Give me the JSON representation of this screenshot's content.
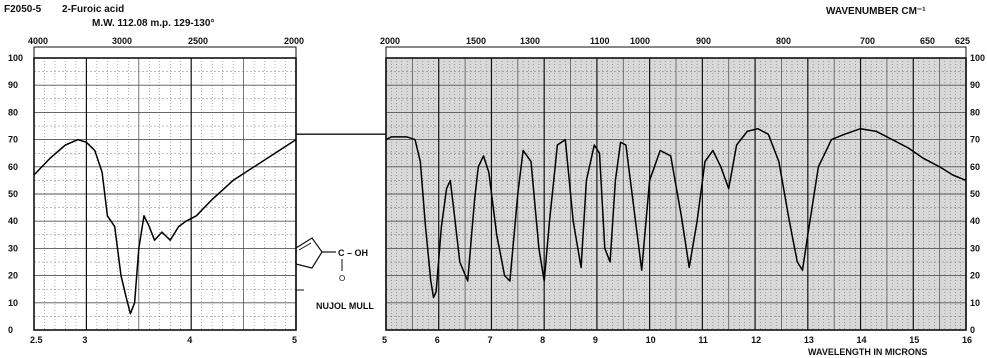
{
  "header": {
    "code": "F2050-5",
    "compound": "2-Furoic acid",
    "properties": "M.W. 112.08  m.p. 129-130°",
    "wavenumber_title": "WAVENUMBER CM⁻¹",
    "wavelength_title": "WAVELENGTH IN MICRONS"
  },
  "annotation": {
    "method": "NUJOL MULL",
    "structure_label": "C – OH",
    "carbonyl": "O"
  },
  "chart_data": {
    "type": "line",
    "title": "2-Furoic acid",
    "xlabel": "WAVELENGTH IN MICRONS",
    "ylabel": "",
    "x_units": "microns",
    "xlim": [
      2.5,
      16
    ],
    "ylim": [
      0,
      100
    ],
    "grid": true,
    "y_ticks": [
      "0",
      "10",
      "20",
      "30",
      "40",
      "50",
      "60",
      "70",
      "80",
      "90",
      "100"
    ],
    "x_ticks_microns": [
      "2.5",
      "3",
      "4",
      "5",
      "5",
      "6",
      "7",
      "8",
      "9",
      "10",
      "11",
      "12",
      "13",
      "14",
      "15",
      "16"
    ],
    "wavenumber_ticks_left": [
      "4000",
      "3000",
      "2500",
      "2000"
    ],
    "wavenumber_ticks_right": [
      "2000",
      "1500",
      "1300",
      "1100",
      "1000",
      "900",
      "800",
      "700",
      "650",
      "625"
    ],
    "series": [
      {
        "x": [
          2.5,
          2.65,
          2.8,
          2.92,
          3.0,
          3.08,
          3.15,
          3.2,
          3.27,
          3.33,
          3.38,
          3.42,
          3.46,
          3.5,
          3.55,
          3.6,
          3.65,
          3.72,
          3.8,
          3.88,
          3.95,
          4.05,
          4.2,
          4.4,
          4.6,
          4.8,
          5.0,
          5.1,
          5.25,
          5.4,
          5.55,
          5.65,
          5.75,
          5.85,
          5.9,
          5.95,
          6.05,
          6.15,
          6.22,
          6.3,
          6.4,
          6.55,
          6.68,
          6.75,
          6.85,
          6.95,
          7.1,
          7.25,
          7.35,
          7.5,
          7.6,
          7.75,
          7.9,
          8.0,
          8.1,
          8.25,
          8.4,
          8.55,
          8.7,
          8.8,
          8.95,
          9.05,
          9.15,
          9.25,
          9.35,
          9.45,
          9.55,
          9.7,
          9.85,
          10.0,
          10.2,
          10.4,
          10.6,
          10.75,
          10.9,
          11.05,
          11.2,
          11.35,
          11.5,
          11.65,
          11.85,
          12.05,
          12.25,
          12.45,
          12.65,
          12.8,
          12.9,
          13.0,
          13.2,
          13.45,
          13.7,
          14.0,
          14.3,
          14.6,
          14.9,
          15.2,
          15.5,
          15.75,
          16.0
        ],
        "y": [
          57,
          63,
          68,
          70,
          69,
          66,
          58,
          42,
          38,
          20,
          12,
          6,
          10,
          30,
          42,
          38,
          33,
          36,
          33,
          38,
          40,
          42,
          48,
          55,
          60,
          65,
          70,
          71,
          71,
          71,
          70,
          62,
          38,
          18,
          12,
          14,
          38,
          52,
          55,
          42,
          25,
          18,
          48,
          60,
          64,
          58,
          35,
          20,
          18,
          50,
          66,
          62,
          30,
          18,
          40,
          68,
          70,
          40,
          23,
          55,
          68,
          65,
          30,
          25,
          55,
          69,
          68,
          45,
          22,
          55,
          66,
          64,
          42,
          23,
          40,
          62,
          66,
          60,
          52,
          68,
          73,
          74,
          72,
          62,
          40,
          25,
          22,
          35,
          60,
          70,
          72,
          74,
          73,
          70,
          67,
          63,
          60,
          57,
          55
        ]
      }
    ]
  }
}
